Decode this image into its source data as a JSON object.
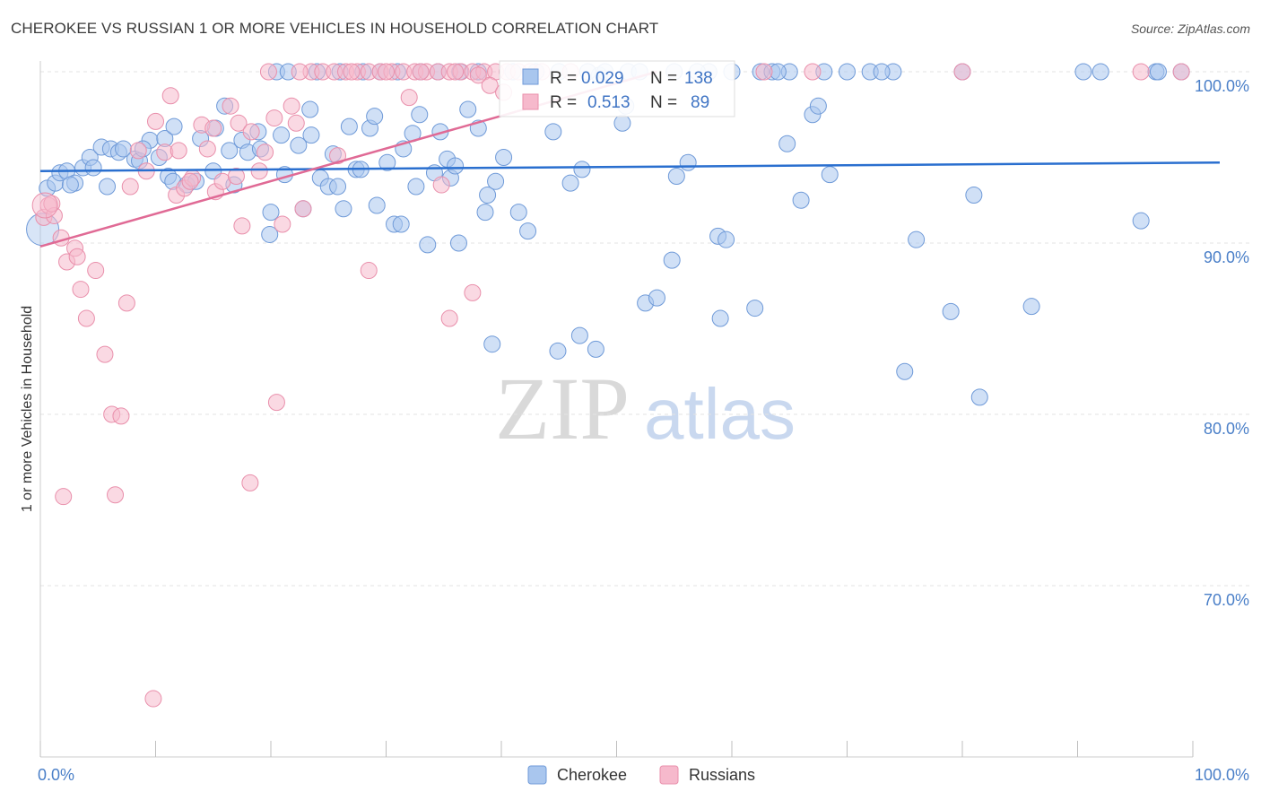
{
  "title": "CHEROKEE VS RUSSIAN 1 OR MORE VEHICLES IN HOUSEHOLD CORRELATION CHART",
  "source": "Source: ZipAtlas.com",
  "watermark": {
    "zip": "ZIP",
    "atlas": "atlas"
  },
  "colors": {
    "blue_fill": "#a9c6ee",
    "blue_stroke": "#6f9ad8",
    "blue_line": "#2a6fcf",
    "pink_fill": "#f6b9cc",
    "pink_stroke": "#e98fab",
    "pink_line": "#e06a95",
    "grid": "#e3e3e3",
    "tick_text": "#4a7fc8"
  },
  "legend": {
    "rows": [
      {
        "r_label": "R =",
        "r_value": "0.029",
        "n_label": "N =",
        "n_value": "138"
      },
      {
        "r_label": "R =",
        "r_value": "0.513",
        "n_label": "N =",
        "n_value": "89"
      }
    ]
  },
  "chart_data": {
    "type": "scatter",
    "title": "CHEROKEE VS RUSSIAN 1 OR MORE VEHICLES IN HOUSEHOLD CORRELATION CHART",
    "xlabel": "",
    "ylabel": "1 or more Vehicles in Household",
    "xlim": [
      0,
      100
    ],
    "ylim": [
      60,
      100
    ],
    "x_tick_labels": [
      "0.0%",
      "100.0%"
    ],
    "y_ticks": [
      70,
      80,
      90,
      100
    ],
    "y_tick_labels": [
      "70.0%",
      "80.0%",
      "90.0%",
      "100.0%"
    ],
    "legend_position": "top-center",
    "series": [
      {
        "name": "Cherokee",
        "r": 0.029,
        "n": 138,
        "trend": {
          "x": [
            0,
            100
          ],
          "y": [
            94.2,
            94.7
          ]
        },
        "points": [
          [
            0.6,
            93.2
          ],
          [
            1.3,
            93.5
          ],
          [
            1.7,
            94.1
          ],
          [
            2.3,
            94.2
          ],
          [
            3.0,
            93.5
          ],
          [
            3.7,
            94.4
          ],
          [
            4.3,
            95.0
          ],
          [
            4.6,
            94.4
          ],
          [
            5.3,
            95.6
          ],
          [
            5.8,
            93.3
          ],
          [
            6.1,
            95.5
          ],
          [
            6.8,
            95.3
          ],
          [
            7.2,
            95.5
          ],
          [
            8.2,
            94.9
          ],
          [
            8.6,
            94.8
          ],
          [
            9.5,
            96.0
          ],
          [
            10.3,
            95.0
          ],
          [
            10.8,
            96.1
          ],
          [
            11.1,
            93.9
          ],
          [
            11.5,
            93.6
          ],
          [
            12.7,
            93.4
          ],
          [
            13.5,
            93.6
          ],
          [
            15.0,
            94.2
          ],
          [
            15.2,
            96.7
          ],
          [
            16.0,
            98.0
          ],
          [
            16.4,
            95.4
          ],
          [
            16.8,
            93.4
          ],
          [
            17.5,
            96.0
          ],
          [
            18.0,
            95.3
          ],
          [
            18.9,
            96.5
          ],
          [
            19.1,
            95.5
          ],
          [
            19.9,
            90.5
          ],
          [
            20.0,
            91.8
          ],
          [
            20.9,
            96.3
          ],
          [
            21.2,
            94.0
          ],
          [
            22.4,
            95.7
          ],
          [
            22.8,
            92.0
          ],
          [
            23.4,
            97.8
          ],
          [
            23.5,
            96.3
          ],
          [
            24.3,
            93.8
          ],
          [
            25.0,
            93.3
          ],
          [
            25.4,
            95.2
          ],
          [
            25.8,
            93.3
          ],
          [
            26.3,
            92.0
          ],
          [
            26.8,
            96.8
          ],
          [
            27.4,
            94.3
          ],
          [
            27.8,
            94.3
          ],
          [
            28.6,
            96.7
          ],
          [
            29.0,
            97.4
          ],
          [
            29.2,
            92.2
          ],
          [
            30.1,
            94.7
          ],
          [
            30.7,
            91.1
          ],
          [
            31.3,
            91.1
          ],
          [
            31.5,
            95.5
          ],
          [
            32.3,
            96.4
          ],
          [
            32.6,
            93.3
          ],
          [
            32.9,
            97.5
          ],
          [
            33.6,
            89.9
          ],
          [
            34.2,
            94.1
          ],
          [
            34.7,
            96.5
          ],
          [
            35.3,
            94.9
          ],
          [
            35.6,
            93.8
          ],
          [
            36.0,
            94.5
          ],
          [
            36.3,
            90.0
          ],
          [
            37.1,
            97.8
          ],
          [
            38.0,
            96.7
          ],
          [
            38.6,
            91.8
          ],
          [
            38.8,
            92.8
          ],
          [
            39.5,
            93.6
          ],
          [
            40.2,
            95.0
          ],
          [
            41.5,
            91.8
          ],
          [
            42.3,
            90.7
          ],
          [
            44.5,
            96.5
          ],
          [
            46.0,
            93.5
          ],
          [
            47.0,
            94.3
          ],
          [
            48.5,
            99.8
          ],
          [
            50.5,
            97.0
          ],
          [
            50.8,
            98.0
          ],
          [
            51.0,
            100.0
          ],
          [
            52.5,
            86.5
          ],
          [
            53.5,
            86.8
          ],
          [
            54.8,
            89.0
          ],
          [
            55.2,
            93.9
          ],
          [
            56.2,
            94.7
          ],
          [
            58.8,
            90.4
          ],
          [
            59.0,
            85.6
          ],
          [
            59.5,
            90.2
          ],
          [
            62.0,
            86.2
          ],
          [
            62.5,
            100.0
          ],
          [
            63.5,
            100.0
          ],
          [
            64.8,
            95.8
          ],
          [
            65.0,
            100.0
          ],
          [
            66.0,
            92.5
          ],
          [
            67.0,
            97.5
          ],
          [
            67.5,
            98.0
          ],
          [
            68.5,
            94.0
          ],
          [
            70.0,
            100.0
          ],
          [
            72.0,
            100.0
          ],
          [
            74.0,
            100.0
          ],
          [
            75.0,
            82.5
          ],
          [
            76.0,
            90.2
          ],
          [
            79.0,
            86.0
          ],
          [
            81.0,
            92.8
          ],
          [
            81.5,
            81.0
          ],
          [
            90.5,
            100.0
          ],
          [
            92.0,
            100.0
          ],
          [
            95.5,
            91.3
          ],
          [
            96.8,
            100.0
          ],
          [
            99.0,
            100.0
          ],
          [
            11.6,
            96.8
          ],
          [
            20.5,
            100.0
          ],
          [
            39.2,
            84.1
          ],
          [
            44.9,
            83.7
          ],
          [
            46.8,
            84.6
          ],
          [
            48.2,
            83.8
          ],
          [
            36.4,
            100.0
          ],
          [
            45.0,
            100.0
          ],
          [
            49.0,
            100.0
          ],
          [
            24.0,
            100.0
          ],
          [
            33.0,
            100.0
          ],
          [
            58.0,
            100.0
          ],
          [
            86.0,
            86.3
          ],
          [
            28.0,
            100.0
          ],
          [
            41.0,
            100.0
          ],
          [
            52.0,
            100.0
          ],
          [
            57.0,
            100.0
          ],
          [
            31.0,
            100.0
          ],
          [
            43.0,
            100.0
          ],
          [
            64.0,
            100.0
          ],
          [
            80.0,
            100.0
          ],
          [
            97.0,
            100.0
          ],
          [
            26.0,
            100.0
          ],
          [
            34.5,
            100.0
          ],
          [
            60.0,
            100.0
          ],
          [
            68.0,
            100.0
          ],
          [
            55.0,
            100.0
          ],
          [
            38.0,
            100.0
          ],
          [
            47.5,
            100.0
          ],
          [
            21.5,
            100.0
          ],
          [
            73.0,
            100.0
          ],
          [
            29.5,
            100.0
          ],
          [
            13.9,
            96.1
          ],
          [
            8.9,
            95.5
          ],
          [
            2.6,
            93.4
          ]
        ]
      },
      {
        "name": "Russians",
        "r": 0.513,
        "n": 89,
        "trend": {
          "x": [
            0,
            53.5
          ],
          "y": [
            89.8,
            100.0
          ]
        },
        "points": [
          [
            0.3,
            91.5
          ],
          [
            0.7,
            92.2
          ],
          [
            1.2,
            91.6
          ],
          [
            1.8,
            90.3
          ],
          [
            2.3,
            88.9
          ],
          [
            3.0,
            89.7
          ],
          [
            3.2,
            89.2
          ],
          [
            3.5,
            87.3
          ],
          [
            4.0,
            85.6
          ],
          [
            4.8,
            88.4
          ],
          [
            5.6,
            83.5
          ],
          [
            6.2,
            80.0
          ],
          [
            7.0,
            79.9
          ],
          [
            7.8,
            93.3
          ],
          [
            8.5,
            95.4
          ],
          [
            9.2,
            94.2
          ],
          [
            10.0,
            97.1
          ],
          [
            10.8,
            95.3
          ],
          [
            11.3,
            98.6
          ],
          [
            11.8,
            92.8
          ],
          [
            12.5,
            93.2
          ],
          [
            13.2,
            93.8
          ],
          [
            14.0,
            96.9
          ],
          [
            14.5,
            95.5
          ],
          [
            15.2,
            93.0
          ],
          [
            15.8,
            93.6
          ],
          [
            16.5,
            98.0
          ],
          [
            17.2,
            97.0
          ],
          [
            17.5,
            91.0
          ],
          [
            18.3,
            96.5
          ],
          [
            19.0,
            94.2
          ],
          [
            19.5,
            95.3
          ],
          [
            20.3,
            97.3
          ],
          [
            21.0,
            91.1
          ],
          [
            21.8,
            98.0
          ],
          [
            22.2,
            97.0
          ],
          [
            22.8,
            92.0
          ],
          [
            23.5,
            100.0
          ],
          [
            24.5,
            100.0
          ],
          [
            25.5,
            100.0
          ],
          [
            26.5,
            100.0
          ],
          [
            27.5,
            100.0
          ],
          [
            28.5,
            100.0
          ],
          [
            29.5,
            100.0
          ],
          [
            30.5,
            100.0
          ],
          [
            31.5,
            100.0
          ],
          [
            32.5,
            100.0
          ],
          [
            33.5,
            100.0
          ],
          [
            34.5,
            100.0
          ],
          [
            35.5,
            100.0
          ],
          [
            36.5,
            100.0
          ],
          [
            37.5,
            100.0
          ],
          [
            38.5,
            100.0
          ],
          [
            39.5,
            100.0
          ],
          [
            40.5,
            100.0
          ],
          [
            41.5,
            100.0
          ],
          [
            42.5,
            100.0
          ],
          [
            2.0,
            75.2
          ],
          [
            6.5,
            75.3
          ],
          [
            9.8,
            63.4
          ],
          [
            18.2,
            76.0
          ],
          [
            20.5,
            80.7
          ],
          [
            28.5,
            88.4
          ],
          [
            35.5,
            85.6
          ],
          [
            37.5,
            87.1
          ],
          [
            32.0,
            98.5
          ],
          [
            25.8,
            95.1
          ],
          [
            34.8,
            93.4
          ],
          [
            7.5,
            86.5
          ],
          [
            1.0,
            92.3
          ],
          [
            13.0,
            93.6
          ],
          [
            15.0,
            96.7
          ],
          [
            12.0,
            95.4
          ],
          [
            17.0,
            93.9
          ],
          [
            19.8,
            100.0
          ],
          [
            22.5,
            100.0
          ],
          [
            27.0,
            100.0
          ],
          [
            30.0,
            100.0
          ],
          [
            33.0,
            100.0
          ],
          [
            36.0,
            100.0
          ],
          [
            39.0,
            99.2
          ],
          [
            43.5,
            100.0
          ],
          [
            46.0,
            100.0
          ],
          [
            62.8,
            100.0
          ],
          [
            67.0,
            100.0
          ],
          [
            80.0,
            100.0
          ],
          [
            95.5,
            100.0
          ],
          [
            99.0,
            100.0
          ],
          [
            38.0,
            99.8
          ],
          [
            40.2,
            98.8
          ]
        ]
      }
    ]
  },
  "bottom_legend": [
    {
      "label": "Cherokee",
      "color_key": "blue"
    },
    {
      "label": "Russians",
      "color_key": "pink"
    }
  ]
}
